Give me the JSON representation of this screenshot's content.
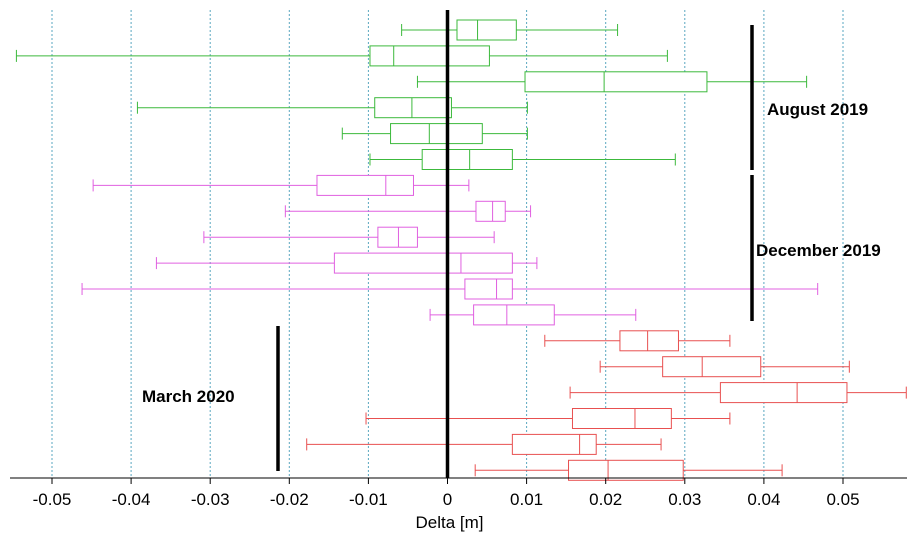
{
  "chart_data": {
    "type": "boxplot",
    "orientation": "horizontal",
    "xlabel": "Delta [m]",
    "xlim": [
      -0.055,
      0.058
    ],
    "xticks": [
      -0.05,
      -0.04,
      -0.03,
      -0.02,
      -0.01,
      0,
      0.01,
      0.02,
      0.03,
      0.04,
      0.05
    ],
    "xtick_labels": [
      "-0.05",
      "-0.04",
      "-0.03",
      "-0.02",
      "-0.01",
      "0",
      "0.01",
      "0.02",
      "0.03",
      "0.04",
      "0.05"
    ],
    "grid": {
      "vertical": true,
      "style": "dotted"
    },
    "reference_line": 0,
    "groups": [
      {
        "label": "August 2019",
        "color": "#3cb93c",
        "boxes": [
          {
            "whisker_low": -0.0058,
            "q1": 0.0012,
            "median": 0.0038,
            "q3": 0.0087,
            "whisker_high": 0.0215
          },
          {
            "whisker_low": -0.0545,
            "q1": -0.0098,
            "median": -0.0068,
            "q3": 0.0053,
            "whisker_high": 0.0278
          },
          {
            "whisker_low": -0.0038,
            "q1": 0.0098,
            "median": 0.0198,
            "q3": 0.0328,
            "whisker_high": 0.0454
          },
          {
            "whisker_low": -0.0392,
            "q1": -0.0092,
            "median": -0.0045,
            "q3": 0.0005,
            "whisker_high": 0.0101
          },
          {
            "whisker_low": -0.0133,
            "q1": -0.0072,
            "median": -0.0023,
            "q3": 0.0044,
            "whisker_high": 0.0101
          },
          {
            "whisker_low": -0.0098,
            "q1": -0.0032,
            "median": 0.0028,
            "q3": 0.0082,
            "whisker_high": 0.0288
          }
        ]
      },
      {
        "label": "December 2019",
        "color": "#e060e0",
        "boxes": [
          {
            "whisker_low": -0.0448,
            "q1": -0.0165,
            "median": -0.0078,
            "q3": -0.0043,
            "whisker_high": 0.0027
          },
          {
            "whisker_low": -0.0205,
            "q1": 0.0036,
            "median": 0.0057,
            "q3": 0.0073,
            "whisker_high": 0.0105
          },
          {
            "whisker_low": -0.0308,
            "q1": -0.0088,
            "median": -0.0062,
            "q3": -0.0038,
            "whisker_high": 0.0059
          },
          {
            "whisker_low": -0.0368,
            "q1": -0.0143,
            "median": 0.0017,
            "q3": 0.0082,
            "whisker_high": 0.0113
          },
          {
            "whisker_low": -0.0462,
            "q1": 0.0022,
            "median": 0.0062,
            "q3": 0.0082,
            "whisker_high": 0.0468
          },
          {
            "whisker_low": -0.0022,
            "q1": 0.0033,
            "median": 0.0075,
            "q3": 0.0135,
            "whisker_high": 0.0238
          }
        ]
      },
      {
        "label": "March 2020",
        "color": "#e85050",
        "boxes": [
          {
            "whisker_low": 0.0123,
            "q1": 0.0218,
            "median": 0.0253,
            "q3": 0.0292,
            "whisker_high": 0.0357
          },
          {
            "whisker_low": 0.0193,
            "q1": 0.0272,
            "median": 0.0322,
            "q3": 0.0396,
            "whisker_high": 0.0508
          },
          {
            "whisker_low": 0.0155,
            "q1": 0.0345,
            "median": 0.0442,
            "q3": 0.0505,
            "whisker_high": 0.058
          },
          {
            "whisker_low": -0.0103,
            "q1": 0.0158,
            "median": 0.0237,
            "q3": 0.0283,
            "whisker_high": 0.0357
          },
          {
            "whisker_low": -0.0178,
            "q1": 0.0082,
            "median": 0.0167,
            "q3": 0.0188,
            "whisker_high": 0.027
          },
          {
            "whisker_low": 0.0035,
            "q1": 0.0153,
            "median": 0.0203,
            "q3": 0.0298,
            "whisker_high": 0.0423
          }
        ]
      }
    ]
  }
}
